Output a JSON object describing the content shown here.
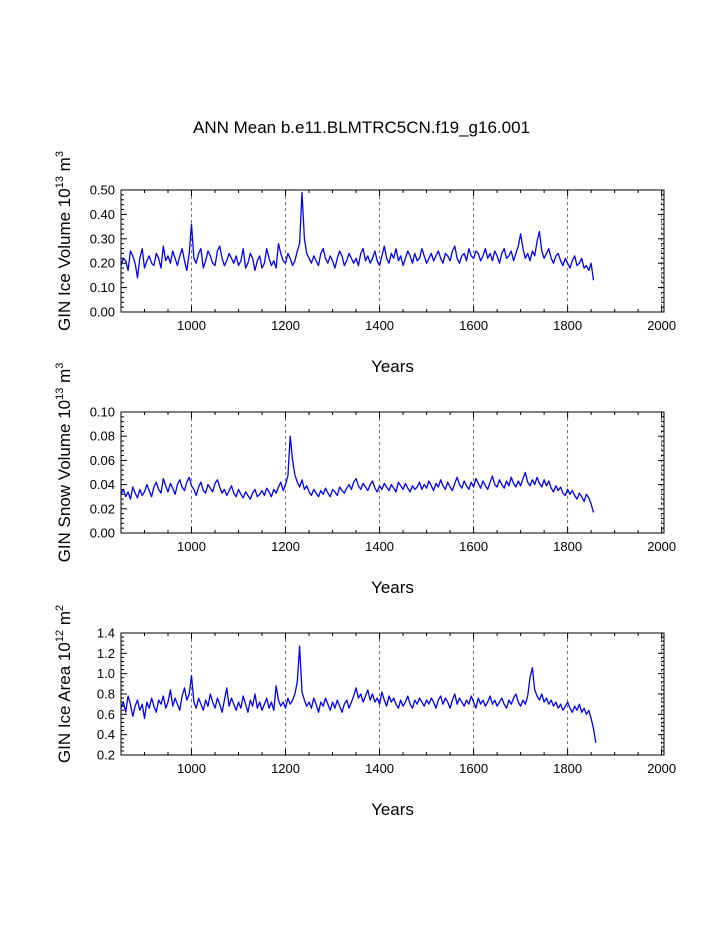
{
  "title": "ANN Mean b.e11.BLMTRC5CN.f19_g16.001",
  "chart_data": [
    {
      "type": "line",
      "name": "gin-ice-volume",
      "ylabel": "GIN Ice Volume",
      "ylabel_unit_base": "10",
      "ylabel_unit_exp": "13",
      "ylabel_unit_m": "m",
      "ylabel_unit_m_exp": "3",
      "xlabel": "Years",
      "xlim": [
        850,
        2005
      ],
      "ylim": [
        0.0,
        0.5
      ],
      "xticks": [
        1000,
        1200,
        1400,
        1600,
        1800,
        2000
      ],
      "yticks": [
        "0.00",
        "0.10",
        "0.20",
        "0.30",
        "0.40",
        "0.50"
      ],
      "ytick_values": [
        0.0,
        0.1,
        0.2,
        0.3,
        0.4,
        0.5
      ],
      "grid_x": true,
      "color": "#0000ff",
      "series": {
        "x_start": 850,
        "x_step": 5,
        "values": [
          0.19,
          0.22,
          0.21,
          0.17,
          0.25,
          0.23,
          0.2,
          0.14,
          0.22,
          0.26,
          0.18,
          0.21,
          0.23,
          0.2,
          0.19,
          0.24,
          0.22,
          0.18,
          0.27,
          0.21,
          0.23,
          0.2,
          0.25,
          0.22,
          0.19,
          0.23,
          0.26,
          0.21,
          0.17,
          0.24,
          0.36,
          0.22,
          0.2,
          0.24,
          0.26,
          0.18,
          0.21,
          0.25,
          0.23,
          0.2,
          0.19,
          0.25,
          0.27,
          0.22,
          0.19,
          0.21,
          0.24,
          0.22,
          0.2,
          0.23,
          0.19,
          0.21,
          0.26,
          0.18,
          0.2,
          0.24,
          0.22,
          0.17,
          0.21,
          0.23,
          0.18,
          0.2,
          0.26,
          0.22,
          0.19,
          0.21,
          0.18,
          0.28,
          0.24,
          0.21,
          0.2,
          0.24,
          0.22,
          0.19,
          0.21,
          0.25,
          0.28,
          0.49,
          0.3,
          0.24,
          0.22,
          0.2,
          0.23,
          0.21,
          0.19,
          0.24,
          0.26,
          0.22,
          0.2,
          0.23,
          0.21,
          0.18,
          0.22,
          0.25,
          0.23,
          0.19,
          0.21,
          0.24,
          0.22,
          0.2,
          0.22,
          0.19,
          0.24,
          0.26,
          0.21,
          0.23,
          0.2,
          0.22,
          0.25,
          0.21,
          0.19,
          0.23,
          0.27,
          0.22,
          0.2,
          0.24,
          0.22,
          0.26,
          0.21,
          0.23,
          0.19,
          0.22,
          0.25,
          0.23,
          0.2,
          0.24,
          0.21,
          0.22,
          0.26,
          0.23,
          0.2,
          0.22,
          0.24,
          0.21,
          0.23,
          0.25,
          0.22,
          0.2,
          0.24,
          0.23,
          0.21,
          0.25,
          0.27,
          0.22,
          0.2,
          0.23,
          0.24,
          0.21,
          0.26,
          0.23,
          0.22,
          0.25,
          0.24,
          0.21,
          0.23,
          0.26,
          0.22,
          0.24,
          0.21,
          0.25,
          0.23,
          0.2,
          0.24,
          0.26,
          0.22,
          0.23,
          0.25,
          0.21,
          0.24,
          0.27,
          0.32,
          0.26,
          0.22,
          0.24,
          0.21,
          0.25,
          0.23,
          0.29,
          0.33,
          0.25,
          0.22,
          0.24,
          0.26,
          0.22,
          0.2,
          0.23,
          0.24,
          0.21,
          0.19,
          0.22,
          0.2,
          0.18,
          0.21,
          0.23,
          0.19,
          0.2,
          0.22,
          0.18,
          0.19,
          0.17,
          0.2,
          0.13
        ]
      }
    },
    {
      "type": "line",
      "name": "gin-snow-volume",
      "ylabel": "GIN Snow Volume",
      "ylabel_unit_base": "10",
      "ylabel_unit_exp": "13",
      "ylabel_unit_m": "m",
      "ylabel_unit_m_exp": "3",
      "xlabel": "Years",
      "xlim": [
        850,
        2005
      ],
      "ylim": [
        0.0,
        0.1
      ],
      "xticks": [
        1000,
        1200,
        1400,
        1600,
        1800,
        2000
      ],
      "yticks": [
        "0.00",
        "0.02",
        "0.04",
        "0.06",
        "0.08",
        "0.10"
      ],
      "ytick_values": [
        0.0,
        0.02,
        0.04,
        0.06,
        0.08,
        0.1
      ],
      "grid_x": true,
      "color": "#0000ff",
      "series": {
        "x_start": 850,
        "x_step": 5,
        "values": [
          0.032,
          0.036,
          0.03,
          0.034,
          0.028,
          0.038,
          0.033,
          0.029,
          0.036,
          0.031,
          0.034,
          0.04,
          0.035,
          0.03,
          0.038,
          0.042,
          0.036,
          0.033,
          0.045,
          0.039,
          0.034,
          0.041,
          0.037,
          0.032,
          0.04,
          0.044,
          0.038,
          0.035,
          0.042,
          0.046,
          0.039,
          0.036,
          0.031,
          0.038,
          0.042,
          0.035,
          0.033,
          0.04,
          0.037,
          0.034,
          0.041,
          0.044,
          0.038,
          0.033,
          0.036,
          0.031,
          0.035,
          0.039,
          0.033,
          0.03,
          0.036,
          0.032,
          0.029,
          0.034,
          0.031,
          0.028,
          0.033,
          0.036,
          0.03,
          0.032,
          0.035,
          0.031,
          0.037,
          0.034,
          0.03,
          0.036,
          0.033,
          0.038,
          0.042,
          0.035,
          0.04,
          0.047,
          0.08,
          0.06,
          0.048,
          0.042,
          0.038,
          0.044,
          0.036,
          0.039,
          0.034,
          0.031,
          0.036,
          0.033,
          0.03,
          0.035,
          0.032,
          0.037,
          0.033,
          0.03,
          0.036,
          0.034,
          0.031,
          0.038,
          0.035,
          0.033,
          0.037,
          0.04,
          0.036,
          0.042,
          0.045,
          0.039,
          0.036,
          0.041,
          0.038,
          0.035,
          0.04,
          0.043,
          0.037,
          0.034,
          0.039,
          0.036,
          0.041,
          0.038,
          0.035,
          0.04,
          0.037,
          0.034,
          0.042,
          0.039,
          0.036,
          0.041,
          0.037,
          0.034,
          0.039,
          0.036,
          0.038,
          0.042,
          0.036,
          0.04,
          0.037,
          0.043,
          0.039,
          0.035,
          0.041,
          0.038,
          0.044,
          0.039,
          0.036,
          0.042,
          0.038,
          0.035,
          0.041,
          0.046,
          0.04,
          0.037,
          0.043,
          0.039,
          0.036,
          0.042,
          0.038,
          0.045,
          0.041,
          0.037,
          0.043,
          0.039,
          0.036,
          0.042,
          0.047,
          0.04,
          0.038,
          0.044,
          0.04,
          0.037,
          0.043,
          0.039,
          0.046,
          0.041,
          0.038,
          0.043,
          0.039,
          0.045,
          0.05,
          0.042,
          0.039,
          0.044,
          0.04,
          0.046,
          0.041,
          0.038,
          0.044,
          0.039,
          0.043,
          0.037,
          0.034,
          0.039,
          0.035,
          0.038,
          0.033,
          0.031,
          0.036,
          0.032,
          0.035,
          0.031,
          0.028,
          0.033,
          0.03,
          0.026,
          0.032,
          0.029,
          0.024,
          0.017
        ]
      }
    },
    {
      "type": "line",
      "name": "gin-ice-area",
      "ylabel": "GIN Ice Area",
      "ylabel_unit_base": "10",
      "ylabel_unit_exp": "12",
      "ylabel_unit_m": "m",
      "ylabel_unit_m_exp": "2",
      "xlabel": "Years",
      "xlim": [
        850,
        2005
      ],
      "ylim": [
        0.2,
        1.4
      ],
      "xticks": [
        1000,
        1200,
        1400,
        1600,
        1800,
        2000
      ],
      "yticks": [
        "0.2",
        "0.4",
        "0.6",
        "0.8",
        "1.0",
        "1.2",
        "1.4"
      ],
      "ytick_values": [
        0.2,
        0.4,
        0.6,
        0.8,
        1.0,
        1.2,
        1.4
      ],
      "grid_x": true,
      "color": "#0000ff",
      "series": {
        "x_start": 850,
        "x_step": 5,
        "values": [
          0.66,
          0.72,
          0.62,
          0.78,
          0.7,
          0.58,
          0.68,
          0.74,
          0.64,
          0.7,
          0.56,
          0.72,
          0.66,
          0.76,
          0.68,
          0.62,
          0.74,
          0.7,
          0.78,
          0.66,
          0.72,
          0.84,
          0.68,
          0.76,
          0.7,
          0.64,
          0.78,
          0.86,
          0.74,
          0.8,
          0.98,
          0.72,
          0.66,
          0.76,
          0.7,
          0.64,
          0.74,
          0.68,
          0.8,
          0.72,
          0.66,
          0.76,
          0.7,
          0.62,
          0.74,
          0.86,
          0.68,
          0.76,
          0.7,
          0.64,
          0.72,
          0.66,
          0.78,
          0.7,
          0.62,
          0.74,
          0.68,
          0.8,
          0.66,
          0.72,
          0.64,
          0.7,
          0.76,
          0.66,
          0.72,
          0.64,
          0.88,
          0.74,
          0.68,
          0.72,
          0.66,
          0.76,
          0.7,
          0.74,
          0.8,
          0.92,
          1.27,
          0.82,
          0.74,
          0.68,
          0.72,
          0.66,
          0.76,
          0.7,
          0.62,
          0.72,
          0.68,
          0.76,
          0.7,
          0.64,
          0.72,
          0.66,
          0.74,
          0.68,
          0.62,
          0.7,
          0.74,
          0.66,
          0.72,
          0.78,
          0.86,
          0.76,
          0.8,
          0.72,
          0.78,
          0.84,
          0.74,
          0.8,
          0.72,
          0.76,
          0.7,
          0.82,
          0.74,
          0.68,
          0.78,
          0.72,
          0.76,
          0.7,
          0.66,
          0.74,
          0.68,
          0.72,
          0.78,
          0.7,
          0.66,
          0.74,
          0.7,
          0.76,
          0.72,
          0.68,
          0.74,
          0.7,
          0.76,
          0.72,
          0.66,
          0.74,
          0.78,
          0.7,
          0.76,
          0.72,
          0.66,
          0.74,
          0.8,
          0.7,
          0.76,
          0.72,
          0.68,
          0.74,
          0.7,
          0.78,
          0.72,
          0.66,
          0.76,
          0.7,
          0.74,
          0.68,
          0.72,
          0.78,
          0.7,
          0.74,
          0.68,
          0.72,
          0.76,
          0.7,
          0.66,
          0.74,
          0.7,
          0.76,
          0.8,
          0.72,
          0.68,
          0.74,
          0.7,
          0.78,
          0.96,
          1.06,
          0.84,
          0.78,
          0.74,
          0.8,
          0.72,
          0.76,
          0.7,
          0.74,
          0.68,
          0.72,
          0.66,
          0.7,
          0.64,
          0.68,
          0.72,
          0.66,
          0.62,
          0.68,
          0.64,
          0.7,
          0.62,
          0.66,
          0.6,
          0.64,
          0.56,
          0.46,
          0.32
        ]
      }
    }
  ]
}
